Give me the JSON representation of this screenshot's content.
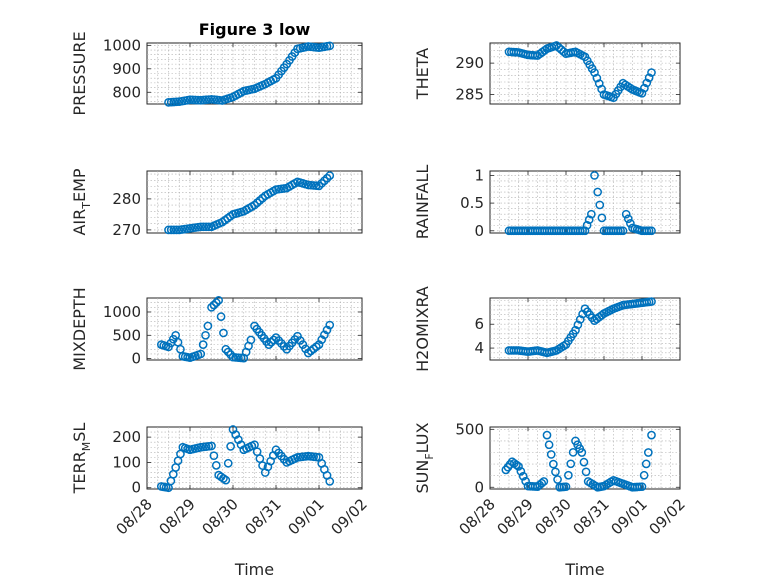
{
  "figure_title": "Figure 3 low",
  "colors": {
    "marker": "#0072bd",
    "axis": "#262626",
    "grid": "#b0b0b0"
  },
  "chart_data": [
    {
      "type": "scatter",
      "title": "Figure 3 low",
      "ylabel": "PRESSURE",
      "ylabel_main": "PRESSURE",
      "ylabel_sub": "",
      "ylabel_tail": "",
      "xlabel": "",
      "xticklabels": [],
      "xlim": [
        "08/28",
        "09/02"
      ],
      "ylim": [
        750,
        1010
      ],
      "yticks": [
        800,
        900,
        1000
      ],
      "yticklabels": [
        "800",
        "900",
        "1000"
      ],
      "x": [
        "08/28 12:00",
        "08/28 18:00",
        "08/29 00:00",
        "08/29 06:00",
        "08/29 12:00",
        "08/29 18:00",
        "08/30 00:00",
        "08/30 06:00",
        "08/30 12:00",
        "08/30 18:00",
        "08/31 00:00",
        "08/31 06:00",
        "08/31 12:00",
        "08/31 18:00",
        "09/01 00:00",
        "09/01 06:00"
      ],
      "y": [
        757,
        760,
        768,
        766,
        770,
        765,
        780,
        805,
        815,
        835,
        860,
        920,
        985,
        995,
        990,
        998
      ]
    },
    {
      "type": "scatter",
      "title": "",
      "ylabel": "THETA",
      "ylabel_main": "THETA",
      "ylabel_sub": "",
      "ylabel_tail": "",
      "xlabel": "",
      "xticklabels": [],
      "xlim": [
        "08/28",
        "09/02"
      ],
      "ylim": [
        283.5,
        293.2
      ],
      "yticks": [
        285,
        290
      ],
      "yticklabels": [
        "285",
        "290"
      ],
      "x": [
        "08/28 12:00",
        "08/28 18:00",
        "08/29 00:00",
        "08/29 06:00",
        "08/29 12:00",
        "08/29 18:00",
        "08/30 00:00",
        "08/30 06:00",
        "08/30 12:00",
        "08/30 18:00",
        "08/31 00:00",
        "08/31 06:00",
        "08/31 12:00",
        "08/31 18:00",
        "09/01 00:00",
        "09/01 06:00"
      ],
      "y": [
        291.8,
        291.7,
        291.3,
        291.2,
        292.3,
        292.8,
        291.5,
        291.8,
        291.0,
        288.5,
        285.0,
        284.5,
        286.8,
        285.8,
        285.2,
        288.5
      ]
    },
    {
      "type": "scatter",
      "title": "",
      "ylabel": "AIR_TEMP",
      "ylabel_main": "AIR",
      "ylabel_sub": "T",
      "ylabel_tail": "EMP",
      "xlabel": "",
      "xticklabels": [],
      "xlim": [
        "08/28",
        "09/02"
      ],
      "ylim": [
        269,
        289
      ],
      "yticks": [
        270,
        280
      ],
      "yticklabels": [
        "270",
        "280"
      ],
      "x": [
        "08/28 12:00",
        "08/28 18:00",
        "08/29 00:00",
        "08/29 06:00",
        "08/29 12:00",
        "08/29 18:00",
        "08/30 00:00",
        "08/30 06:00",
        "08/30 12:00",
        "08/30 18:00",
        "08/31 00:00",
        "08/31 06:00",
        "08/31 12:00",
        "08/31 18:00",
        "09/01 00:00",
        "09/01 06:00"
      ],
      "y": [
        270,
        270,
        270.5,
        271,
        271,
        272.5,
        275,
        276,
        278,
        281,
        283,
        283.5,
        285.5,
        284.5,
        284.2,
        287.5
      ]
    },
    {
      "type": "scatter",
      "title": "",
      "ylabel": "RAINFALL",
      "ylabel_main": "RAINFALL",
      "ylabel_sub": "",
      "ylabel_tail": "",
      "xlabel": "",
      "xticklabels": [],
      "xlim": [
        "08/28",
        "09/02"
      ],
      "ylim": [
        -0.04,
        1.08
      ],
      "yticks": [
        0,
        0.5,
        1
      ],
      "yticklabels": [
        "0",
        "0.5",
        "1"
      ],
      "x": [
        "08/28 12:00",
        "08/28 18:00",
        "08/29 00:00",
        "08/29 06:00",
        "08/29 12:00",
        "08/29 18:00",
        "08/30 00:00",
        "08/30 06:00",
        "08/30 12:00",
        "08/30 16:00",
        "08/30 18:00",
        "08/30 20:00",
        "08/31 00:00",
        "08/31 06:00",
        "08/31 12:00",
        "08/31 14:00",
        "08/31 18:00",
        "09/01 00:00",
        "09/01 06:00"
      ],
      "y": [
        0,
        0,
        0,
        0,
        0,
        0,
        0,
        0,
        0,
        0.3,
        1.0,
        0.7,
        0,
        0,
        0,
        0.3,
        0.05,
        0,
        0
      ]
    },
    {
      "type": "scatter",
      "title": "",
      "ylabel": "MIXDEPTH",
      "ylabel_main": "MIXDEPTH",
      "ylabel_sub": "",
      "ylabel_tail": "",
      "xlabel": "",
      "xticklabels": [],
      "xlim": [
        "08/28",
        "09/02"
      ],
      "ylim": [
        -30,
        1300
      ],
      "yticks": [
        0,
        500,
        1000
      ],
      "yticklabels": [
        "0",
        "500",
        "1000"
      ],
      "x": [
        "08/28 08:00",
        "08/28 12:00",
        "08/28 16:00",
        "08/28 20:00",
        "08/29 00:00",
        "08/29 06:00",
        "08/29 10:00",
        "08/29 12:00",
        "08/29 16:00",
        "08/29 20:00",
        "08/30 00:00",
        "08/30 06:00",
        "08/30 10:00",
        "08/30 12:00",
        "08/30 16:00",
        "08/30 20:00",
        "08/31 00:00",
        "08/31 06:00",
        "08/31 12:00",
        "08/31 18:00",
        "09/01 00:00",
        "09/01 06:00"
      ],
      "y": [
        300,
        250,
        500,
        50,
        20,
        100,
        700,
        1100,
        1250,
        200,
        30,
        10,
        400,
        700,
        500,
        300,
        450,
        200,
        480,
        120,
        300,
        720
      ]
    },
    {
      "type": "scatter",
      "title": "",
      "ylabel": "H2OMIXRA",
      "ylabel_main": "H2OMIXRA",
      "ylabel_sub": "",
      "ylabel_tail": "",
      "xlabel": "",
      "xticklabels": [],
      "xlim": [
        "08/28",
        "09/02"
      ],
      "ylim": [
        3.0,
        8.2
      ],
      "yticks": [
        4,
        6
      ],
      "yticklabels": [
        "4",
        "6"
      ],
      "x": [
        "08/28 12:00",
        "08/28 18:00",
        "08/29 00:00",
        "08/29 06:00",
        "08/29 12:00",
        "08/29 18:00",
        "08/30 00:00",
        "08/30 06:00",
        "08/30 12:00",
        "08/30 18:00",
        "08/31 00:00",
        "08/31 06:00",
        "08/31 12:00",
        "08/31 18:00",
        "09/01 00:00",
        "09/01 06:00"
      ],
      "y": [
        3.8,
        3.8,
        3.7,
        3.8,
        3.6,
        3.8,
        4.3,
        5.5,
        7.3,
        6.3,
        6.9,
        7.3,
        7.6,
        7.7,
        7.8,
        7.9
      ]
    },
    {
      "type": "scatter",
      "title": "",
      "ylabel": "TERR_MSL",
      "ylabel_main": "TERR",
      "ylabel_sub": "M",
      "ylabel_tail": "SL",
      "xlabel": "Time",
      "xticks": [
        "08/28",
        "08/29",
        "08/30",
        "08/31",
        "09/01",
        "09/02"
      ],
      "xticklabels": [
        "08/28",
        "08/29",
        "08/30",
        "08/31",
        "09/01",
        "09/02"
      ],
      "xlim": [
        "08/28",
        "09/02"
      ],
      "ylim": [
        -5,
        240
      ],
      "yticks": [
        0,
        100,
        200
      ],
      "yticklabels": [
        "0",
        "100",
        "200"
      ],
      "x": [
        "08/28 08:00",
        "08/28 12:00",
        "08/28 16:00",
        "08/28 20:00",
        "08/29 00:00",
        "08/29 06:00",
        "08/29 12:00",
        "08/29 16:00",
        "08/29 20:00",
        "08/30 00:00",
        "08/30 06:00",
        "08/30 12:00",
        "08/30 18:00",
        "08/31 00:00",
        "08/31 06:00",
        "08/31 12:00",
        "08/31 18:00",
        "09/01 00:00",
        "09/01 06:00"
      ],
      "y": [
        5,
        0,
        80,
        160,
        150,
        160,
        165,
        50,
        30,
        230,
        150,
        170,
        60,
        150,
        100,
        120,
        125,
        120,
        25
      ]
    },
    {
      "type": "scatter",
      "title": "",
      "ylabel": "SUN_FLUX",
      "ylabel_main": "SUN",
      "ylabel_sub": "F",
      "ylabel_tail": "LUX",
      "xlabel": "Time",
      "xticks": [
        "08/28",
        "08/29",
        "08/30",
        "08/31",
        "09/01",
        "09/02"
      ],
      "xticklabels": [
        "08/28",
        "08/29",
        "08/30",
        "08/31",
        "09/01",
        "09/02"
      ],
      "xlim": [
        "08/28",
        "09/02"
      ],
      "ylim": [
        -15,
        520
      ],
      "yticks": [
        0,
        500
      ],
      "yticklabels": [
        "0",
        "500"
      ],
      "x": [
        "08/28 10:00",
        "08/28 14:00",
        "08/28 18:00",
        "08/29 00:00",
        "08/29 06:00",
        "08/29 10:00",
        "08/29 12:00",
        "08/29 16:00",
        "08/29 20:00",
        "08/30 00:00",
        "08/30 06:00",
        "08/30 10:00",
        "08/30 14:00",
        "08/30 20:00",
        "08/31 00:00",
        "08/31 06:00",
        "08/31 12:00",
        "08/31 18:00",
        "09/01 00:00",
        "09/01 04:00",
        "09/01 06:00"
      ],
      "y": [
        150,
        220,
        180,
        10,
        5,
        50,
        450,
        200,
        0,
        5,
        400,
        300,
        50,
        0,
        10,
        60,
        30,
        0,
        5,
        300,
        450
      ]
    }
  ]
}
